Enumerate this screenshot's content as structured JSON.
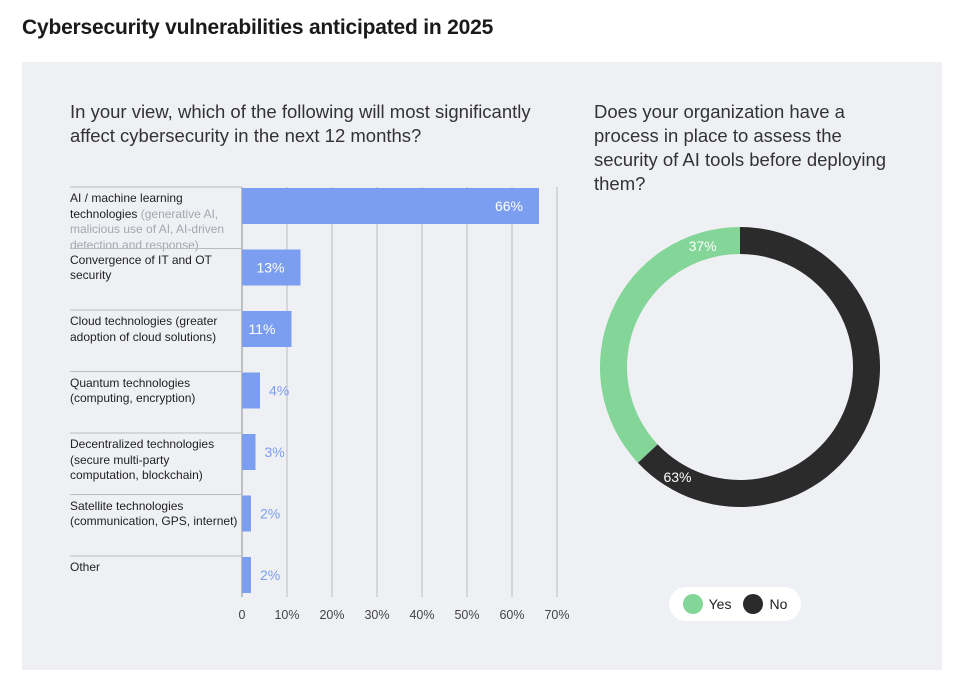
{
  "title": "Cybersecurity vulnerabilities anticipated in 2025",
  "colors": {
    "bar": "#7b9ef0",
    "yes": "#83d598",
    "no": "#2b2b2b",
    "panel": "#eef0f3"
  },
  "chart_data": [
    {
      "type": "bar",
      "orientation": "horizontal",
      "title": "In your view, which of the following will most significantly affect cybersecurity in the next 12 months?",
      "categories": [
        {
          "main": "AI / machine learning technologies",
          "detail": "(generative AI, malicious use of AI, AI-driven detection and response)"
        },
        {
          "main": "Convergence of IT and OT security",
          "detail": ""
        },
        {
          "main": "Cloud technologies (greater adoption of cloud solutions)",
          "detail": ""
        },
        {
          "main": "Quantum technologies (computing, encryption)",
          "detail": ""
        },
        {
          "main": "Decentralized technologies (secure multi-party computation, blockchain)",
          "detail": ""
        },
        {
          "main": "Satellite technologies (communication, GPS, internet)",
          "detail": ""
        },
        {
          "main": "Other",
          "detail": ""
        }
      ],
      "values": [
        66,
        13,
        11,
        4,
        3,
        2,
        2
      ],
      "value_labels": [
        "66%",
        "13%",
        "11%",
        "4%",
        "3%",
        "2%",
        "2%"
      ],
      "xlim": [
        0,
        70
      ],
      "xticks": [
        "0",
        "10%",
        "20%",
        "30%",
        "40%",
        "50%",
        "60%",
        "70%"
      ],
      "grid": true
    },
    {
      "type": "pie",
      "variant": "donut",
      "title": "Does your organization have a process in place to assess the security of AI tools before deploying them?",
      "slices": [
        {
          "name": "Yes",
          "value": 37,
          "label": "37%"
        },
        {
          "name": "No",
          "value": 63,
          "label": "63%"
        }
      ],
      "legend": "bottom"
    }
  ]
}
